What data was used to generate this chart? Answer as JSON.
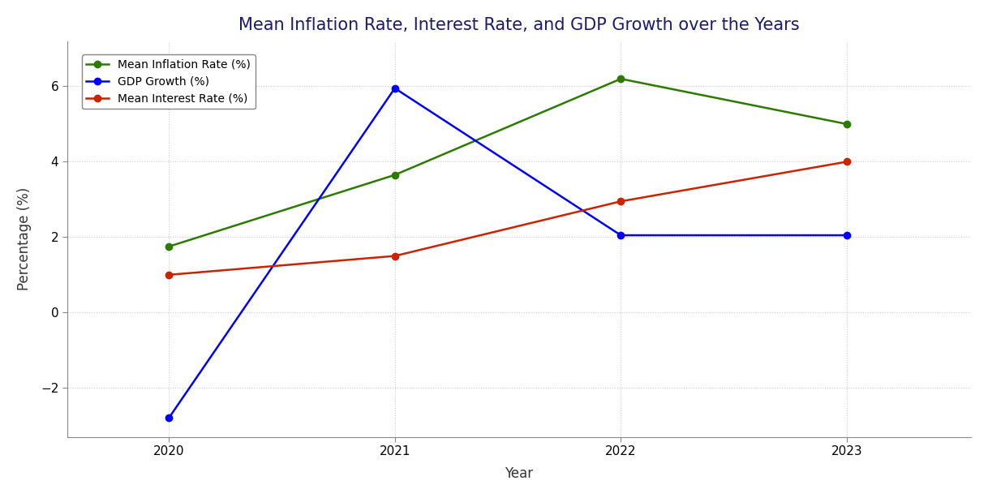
{
  "title": "Mean Inflation Rate, Interest Rate, and GDP Growth over the Years",
  "xlabel": "Year",
  "ylabel": "Percentage (%)",
  "years": [
    2020,
    2021,
    2022,
    2023
  ],
  "inflation_rate": [
    1.75,
    3.65,
    6.2,
    5.0
  ],
  "gdp_growth": [
    -2.8,
    5.95,
    2.05,
    2.05
  ],
  "interest_rate": [
    1.0,
    1.5,
    2.95,
    4.0
  ],
  "inflation_color": "#2d7a00",
  "gdp_color": "#0000ff",
  "interest_color": "#cc2200",
  "legend_labels": [
    "Mean Inflation Rate (%)",
    "GDP Growth (%)",
    "Mean Interest Rate (%)"
  ],
  "ylim": [
    -3.3,
    7.2
  ],
  "xlim": [
    2019.55,
    2023.55
  ],
  "background_color": "#ffffff",
  "grid_color": "#cccccc",
  "title_fontsize": 15,
  "label_fontsize": 12,
  "tick_fontsize": 11,
  "legend_fontsize": 10,
  "linewidth": 1.8,
  "markersize": 6,
  "title_color": "#1a1a6e"
}
